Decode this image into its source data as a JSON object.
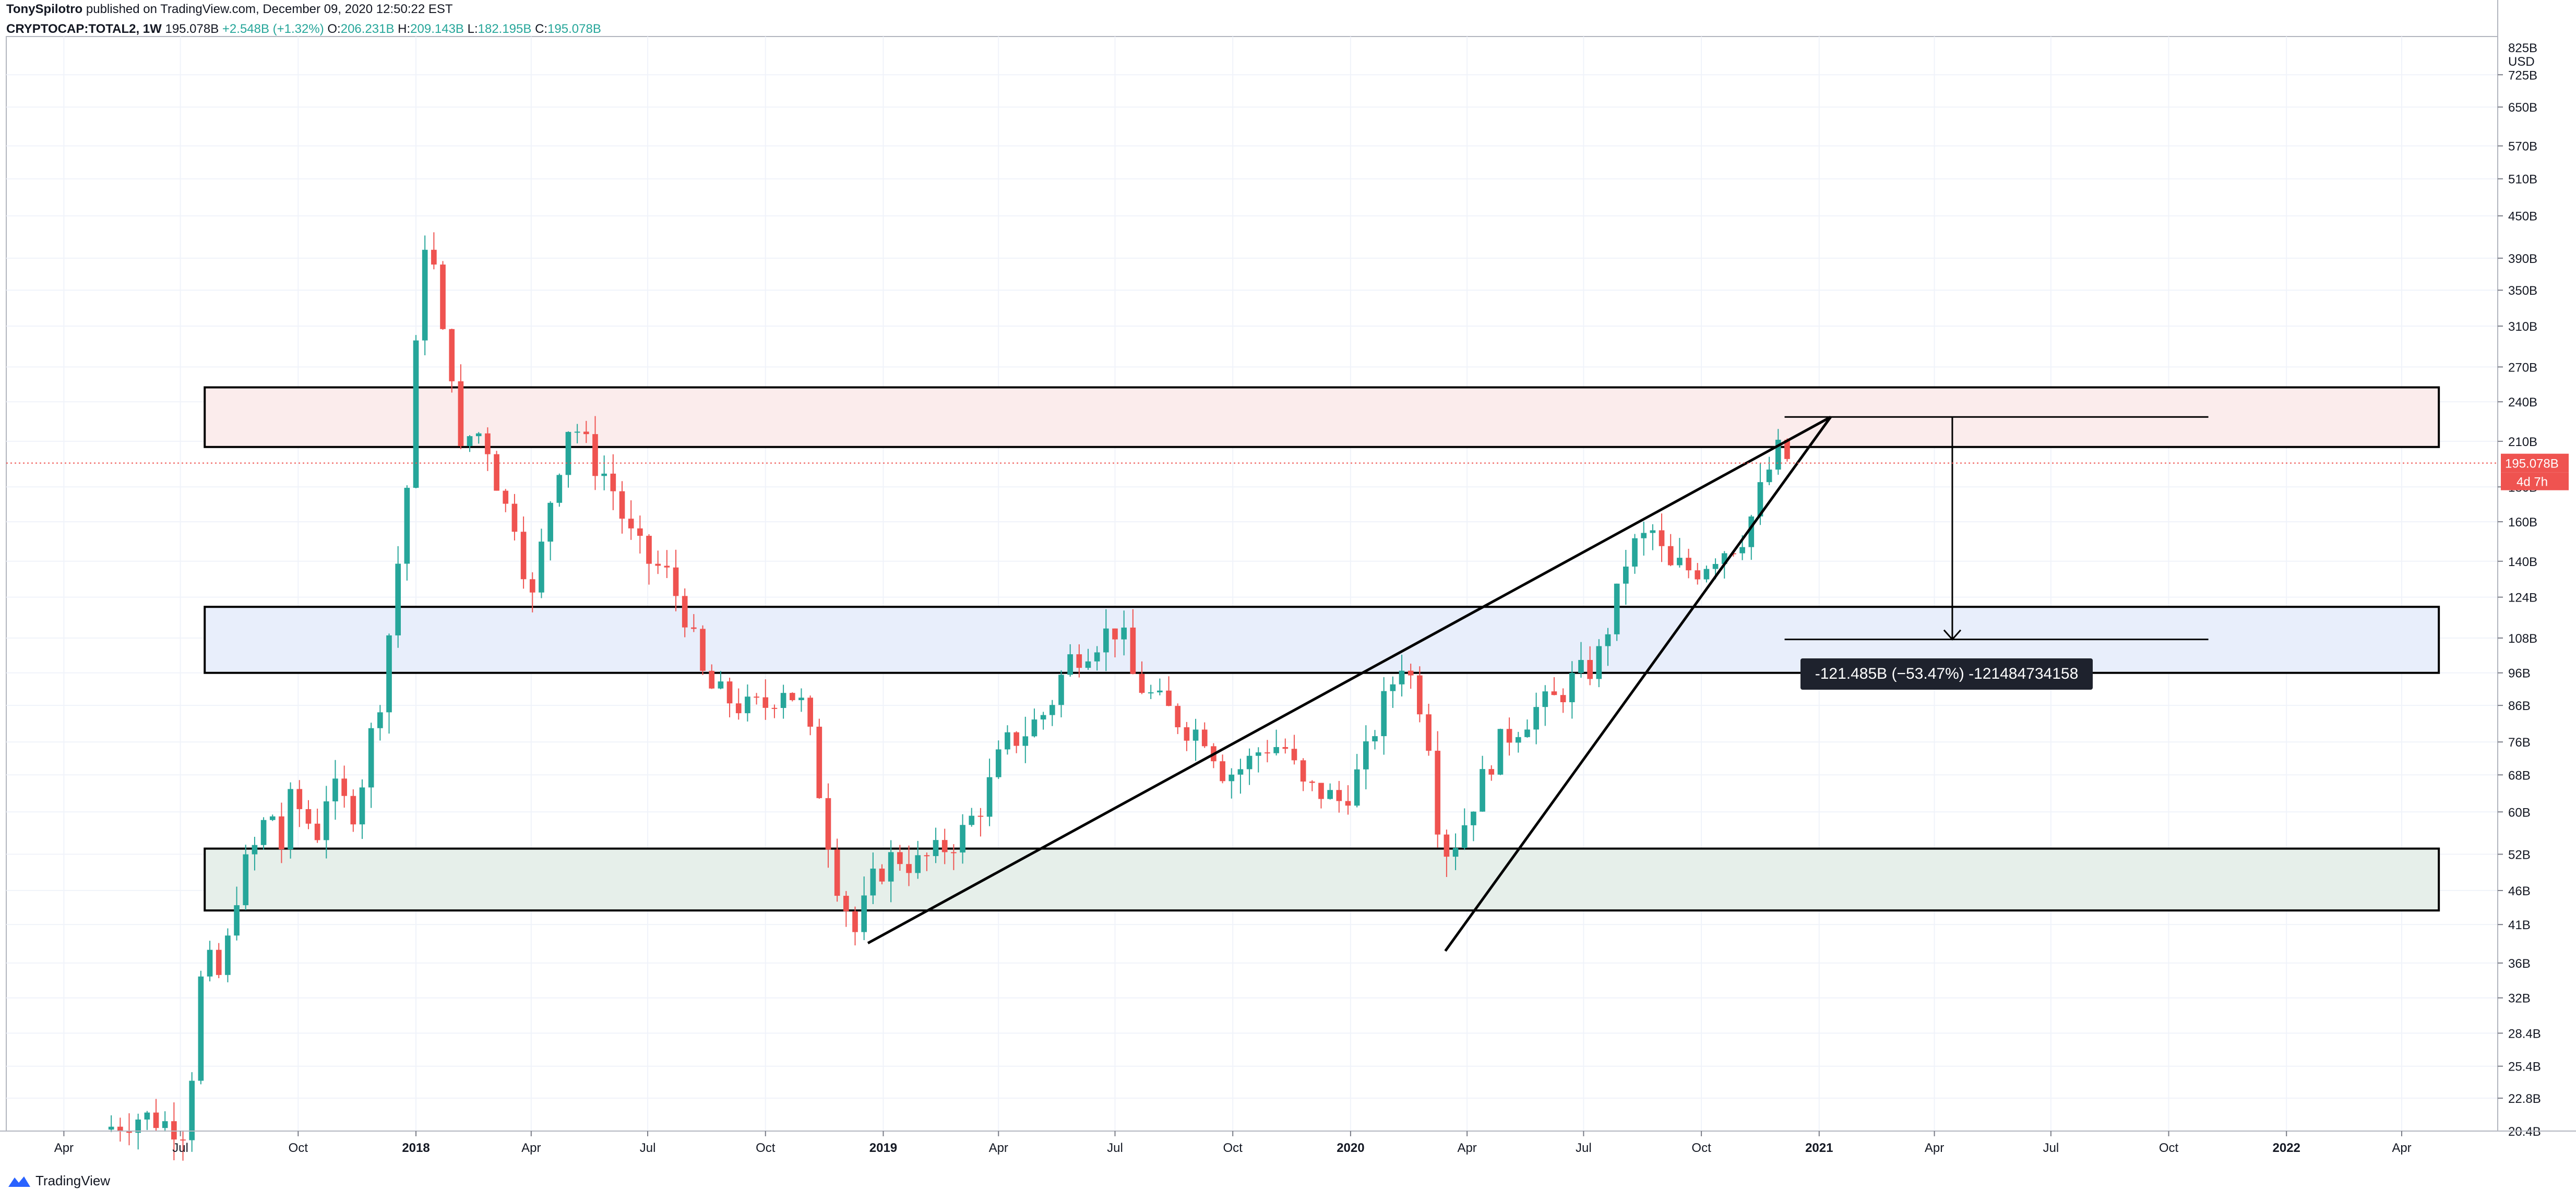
{
  "header": {
    "publisher": "TonySpilotro",
    "published_text": "published on TradingView.com, December 09, 2020 12:50:22 EST",
    "symbol": "CRYPTOCAP:TOTAL2, 1W",
    "last": "195.078B",
    "change": "+2.548B (+1.32%)",
    "o_label": "O:",
    "o_value": "206.231B",
    "h_label": "H:",
    "h_value": "209.143B",
    "l_label": "L:",
    "l_value": "182.195B",
    "c_label": "C:",
    "c_value": "195.078B"
  },
  "footer": {
    "brand": "TradingView"
  },
  "price_axis": {
    "currency": "USD",
    "top_partial": "825B",
    "current_price_label": "195.078B",
    "countdown_label": "4d 7h"
  },
  "measure_label": "-121.485B (−53.47%) -121484734158",
  "colors": {
    "up": "#26a69a",
    "down": "#ef5350",
    "resistance_fill": "#fbecec",
    "middle_fill": "#e8eefb",
    "support_fill": "#e6efea",
    "price_line": "#ef5350",
    "axis_text": "#131722",
    "grid": "#f0f3fa"
  },
  "chart_data": {
    "type": "candlestick",
    "title": "CRYPTOCAP:TOTAL2, 1W",
    "scale": "log",
    "ylim": [
      20.4,
      825
    ],
    "xlim": [
      "2017-02-15",
      "2022-06-15"
    ],
    "y_ticks": [
      {
        "label": "20.4B",
        "value": 20.4
      },
      {
        "label": "22.8B",
        "value": 22.8
      },
      {
        "label": "25.4B",
        "value": 25.4
      },
      {
        "label": "28.4B",
        "value": 28.4
      },
      {
        "label": "32B",
        "value": 32
      },
      {
        "label": "36B",
        "value": 36
      },
      {
        "label": "41B",
        "value": 41
      },
      {
        "label": "46B",
        "value": 46
      },
      {
        "label": "52B",
        "value": 52
      },
      {
        "label": "60B",
        "value": 60
      },
      {
        "label": "68B",
        "value": 68
      },
      {
        "label": "76B",
        "value": 76
      },
      {
        "label": "86B",
        "value": 86
      },
      {
        "label": "96B",
        "value": 96
      },
      {
        "label": "108B",
        "value": 108
      },
      {
        "label": "124B",
        "value": 124
      },
      {
        "label": "140B",
        "value": 140
      },
      {
        "label": "160B",
        "value": 160
      },
      {
        "label": "180B",
        "value": 180
      },
      {
        "label": "210B",
        "value": 210
      },
      {
        "label": "240B",
        "value": 240
      },
      {
        "label": "270B",
        "value": 270
      },
      {
        "label": "310B",
        "value": 310
      },
      {
        "label": "350B",
        "value": 350
      },
      {
        "label": "390B",
        "value": 390
      },
      {
        "label": "450B",
        "value": 450
      },
      {
        "label": "510B",
        "value": 510
      },
      {
        "label": "570B",
        "value": 570
      },
      {
        "label": "650B",
        "value": 650
      },
      {
        "label": "725B",
        "value": 725
      }
    ],
    "x_ticks": [
      {
        "label": "Apr",
        "date": "2017-04-01",
        "bold": false
      },
      {
        "label": "Jul",
        "date": "2017-07-01",
        "bold": false
      },
      {
        "label": "Oct",
        "date": "2017-10-01",
        "bold": false
      },
      {
        "label": "2018",
        "date": "2018-01-01",
        "bold": true
      },
      {
        "label": "Apr",
        "date": "2018-04-01",
        "bold": false
      },
      {
        "label": "Jul",
        "date": "2018-07-01",
        "bold": false
      },
      {
        "label": "Oct",
        "date": "2018-10-01",
        "bold": false
      },
      {
        "label": "2019",
        "date": "2019-01-01",
        "bold": true
      },
      {
        "label": "Apr",
        "date": "2019-04-01",
        "bold": false
      },
      {
        "label": "Jul",
        "date": "2019-07-01",
        "bold": false
      },
      {
        "label": "Oct",
        "date": "2019-10-01",
        "bold": false
      },
      {
        "label": "2020",
        "date": "2020-01-01",
        "bold": true
      },
      {
        "label": "Apr",
        "date": "2020-04-01",
        "bold": false
      },
      {
        "label": "Jul",
        "date": "2020-07-01",
        "bold": false
      },
      {
        "label": "Oct",
        "date": "2020-10-01",
        "bold": false
      },
      {
        "label": "2021",
        "date": "2021-01-01",
        "bold": true
      },
      {
        "label": "Apr",
        "date": "2021-04-01",
        "bold": false
      },
      {
        "label": "Jul",
        "date": "2021-07-01",
        "bold": false
      },
      {
        "label": "Oct",
        "date": "2021-10-01",
        "bold": false
      },
      {
        "label": "2022",
        "date": "2022-01-01",
        "bold": true
      },
      {
        "label": "Apr",
        "date": "2022-04-01",
        "bold": false
      }
    ],
    "price_path": [
      [
        "2017-05-01",
        20.5
      ],
      [
        "2017-06-01",
        21.5
      ],
      [
        "2017-07-05",
        20.5
      ],
      [
        "2017-07-12",
        27
      ],
      [
        "2017-07-19",
        37
      ],
      [
        "2017-08-02",
        34
      ],
      [
        "2017-08-16",
        48
      ],
      [
        "2017-08-30",
        54
      ],
      [
        "2017-09-10",
        62
      ],
      [
        "2017-09-15",
        50
      ],
      [
        "2017-09-25",
        62
      ],
      [
        "2017-10-05",
        60
      ],
      [
        "2017-10-15",
        55
      ],
      [
        "2017-10-25",
        66
      ],
      [
        "2017-11-05",
        62
      ],
      [
        "2017-11-15",
        60
      ],
      [
        "2017-11-25",
        75
      ],
      [
        "2017-12-05",
        90
      ],
      [
        "2017-12-15",
        125
      ],
      [
        "2017-12-25",
        180
      ],
      [
        "2018-01-07",
        420
      ],
      [
        "2018-01-14",
        390
      ],
      [
        "2018-01-21",
        300
      ],
      [
        "2018-01-28",
        280
      ],
      [
        "2018-02-05",
        200
      ],
      [
        "2018-02-15",
        220
      ],
      [
        "2018-02-25",
        210
      ],
      [
        "2018-03-10",
        170
      ],
      [
        "2018-03-20",
        160
      ],
      [
        "2018-04-01",
        120
      ],
      [
        "2018-04-15",
        170
      ],
      [
        "2018-05-01",
        225
      ],
      [
        "2018-05-10",
        215
      ],
      [
        "2018-05-20",
        195
      ],
      [
        "2018-06-01",
        185
      ],
      [
        "2018-06-15",
        155
      ],
      [
        "2018-07-01",
        140
      ],
      [
        "2018-07-15",
        135
      ],
      [
        "2018-08-01",
        115
      ],
      [
        "2018-08-15",
        92
      ],
      [
        "2018-09-01",
        88
      ],
      [
        "2018-09-15",
        85
      ],
      [
        "2018-10-01",
        86
      ],
      [
        "2018-10-15",
        92
      ],
      [
        "2018-11-01",
        85
      ],
      [
        "2018-11-15",
        60
      ],
      [
        "2018-11-25",
        48
      ],
      [
        "2018-12-10",
        40
      ],
      [
        "2018-12-25",
        48
      ],
      [
        "2019-01-10",
        52
      ],
      [
        "2019-01-25",
        50
      ],
      [
        "2019-02-10",
        52
      ],
      [
        "2019-03-01",
        55
      ],
      [
        "2019-03-20",
        62
      ],
      [
        "2019-04-05",
        75
      ],
      [
        "2019-04-20",
        78
      ],
      [
        "2019-05-10",
        85
      ],
      [
        "2019-05-25",
        100
      ],
      [
        "2019-06-10",
        105
      ],
      [
        "2019-06-25",
        110
      ],
      [
        "2019-07-05",
        112
      ],
      [
        "2019-07-15",
        95
      ],
      [
        "2019-07-25",
        90
      ],
      [
        "2019-08-10",
        85
      ],
      [
        "2019-08-25",
        80
      ],
      [
        "2019-09-10",
        78
      ],
      [
        "2019-09-25",
        68
      ],
      [
        "2019-10-10",
        70
      ],
      [
        "2019-10-25",
        75
      ],
      [
        "2019-11-10",
        75
      ],
      [
        "2019-11-25",
        65
      ],
      [
        "2019-12-10",
        64
      ],
      [
        "2019-12-25",
        62
      ],
      [
        "2020-01-10",
        70
      ],
      [
        "2020-01-25",
        85
      ],
      [
        "2020-02-10",
        100
      ],
      [
        "2020-02-20",
        92
      ],
      [
        "2020-03-01",
        80
      ],
      [
        "2020-03-12",
        52
      ],
      [
        "2020-03-25",
        55
      ],
      [
        "2020-04-10",
        65
      ],
      [
        "2020-04-25",
        75
      ],
      [
        "2020-05-10",
        80
      ],
      [
        "2020-05-25",
        85
      ],
      [
        "2020-06-10",
        88
      ],
      [
        "2020-06-25",
        95
      ],
      [
        "2020-07-10",
        98
      ],
      [
        "2020-07-25",
        120
      ],
      [
        "2020-08-05",
        145
      ],
      [
        "2020-08-15",
        150
      ],
      [
        "2020-08-25",
        155
      ],
      [
        "2020-09-05",
        135
      ],
      [
        "2020-09-15",
        138
      ],
      [
        "2020-09-25",
        135
      ],
      [
        "2020-10-05",
        140
      ],
      [
        "2020-10-15",
        145
      ],
      [
        "2020-10-25",
        148
      ],
      [
        "2020-11-05",
        155
      ],
      [
        "2020-11-15",
        175
      ],
      [
        "2020-11-25",
        195
      ],
      [
        "2020-12-02",
        206
      ],
      [
        "2020-12-09",
        195.078
      ]
    ],
    "annotations": {
      "zones": [
        {
          "name": "resistance-zone",
          "from": "2017-07-20",
          "to": "2022-04-30",
          "low": 206,
          "high": 252
        },
        {
          "name": "middle-zone",
          "from": "2017-07-20",
          "to": "2022-04-30",
          "low": 96,
          "high": 120
        },
        {
          "name": "support-zone",
          "from": "2017-07-20",
          "to": "2022-04-30",
          "low": 43,
          "high": 53
        }
      ],
      "trendlines": [
        {
          "name": "upper-wedge-line",
          "from": [
            "2018-12-20",
            38.5
          ],
          "to": [
            "2021-01-10",
            228
          ]
        },
        {
          "name": "lower-wedge-line",
          "from": [
            "2020-03-15",
            37.5
          ],
          "to": [
            "2021-01-10",
            228
          ]
        }
      ],
      "measure": {
        "from_date": "2020-12-05",
        "to_date": "2021-11-01",
        "high": 228,
        "low": 107.5,
        "arrow_date": "2021-04-15"
      }
    }
  }
}
